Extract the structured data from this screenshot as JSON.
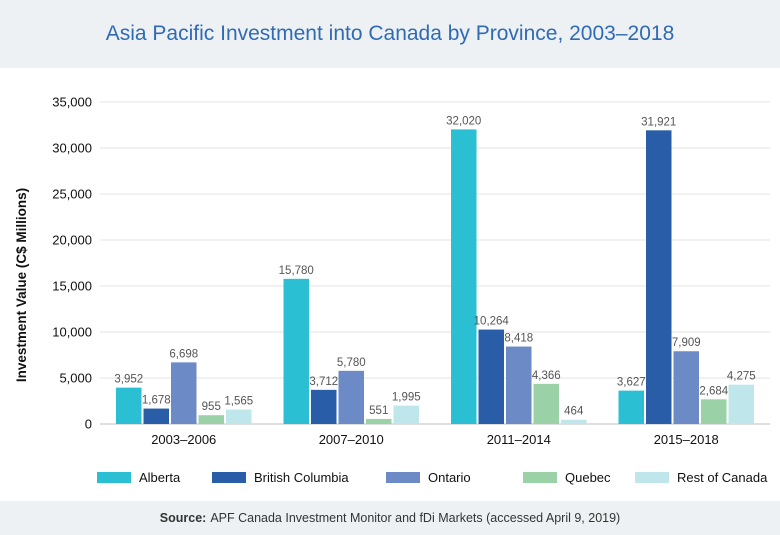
{
  "title": "Asia Pacific Investment into Canada by Province, 2003–2018",
  "source": {
    "label": "Source:",
    "text": "APF Canada Investment Monitor and fDi Markets (accessed April 9, 2019)"
  },
  "chart_data": {
    "type": "bar",
    "title": "Asia Pacific Investment into Canada by Province, 2003–2018",
    "xlabel": "",
    "ylabel": "Investment Value (C$ Millions)",
    "categories": [
      "2003–2006",
      "2007–2010",
      "2011–2014",
      "2015–2018"
    ],
    "ylim": [
      0,
      35000
    ],
    "yticks": [
      0,
      5000,
      10000,
      15000,
      20000,
      25000,
      30000,
      35000
    ],
    "ytick_labels": [
      "0",
      "5,000",
      "10,000",
      "15,000",
      "20,000",
      "25,000",
      "30,000",
      "35,000"
    ],
    "grid": true,
    "legend_position": "bottom",
    "series": [
      {
        "name": "Alberta",
        "color": "#2bbfd3",
        "values": [
          3952,
          15780,
          32020,
          3627
        ],
        "labels": [
          "3,952",
          "15,780",
          "32,020",
          "3,627"
        ]
      },
      {
        "name": "British Columbia",
        "color": "#2a5da8",
        "values": [
          1678,
          3712,
          10264,
          31921
        ],
        "labels": [
          "1,678",
          "3,712",
          "10,264",
          "31,921"
        ]
      },
      {
        "name": "Ontario",
        "color": "#6c8ac6",
        "values": [
          6698,
          5780,
          8418,
          7909
        ],
        "labels": [
          "6,698",
          "5,780",
          "8,418",
          "7,909"
        ]
      },
      {
        "name": "Quebec",
        "color": "#9bd1a7",
        "values": [
          955,
          551,
          4366,
          2684
        ],
        "labels": [
          "955",
          "551",
          "4,366",
          "2,684"
        ]
      },
      {
        "name": "Rest of Canada",
        "color": "#bfe6ea",
        "values": [
          1565,
          1995,
          464,
          4275
        ],
        "labels": [
          "1,565",
          "1,995",
          "464",
          "4,275"
        ]
      }
    ]
  }
}
